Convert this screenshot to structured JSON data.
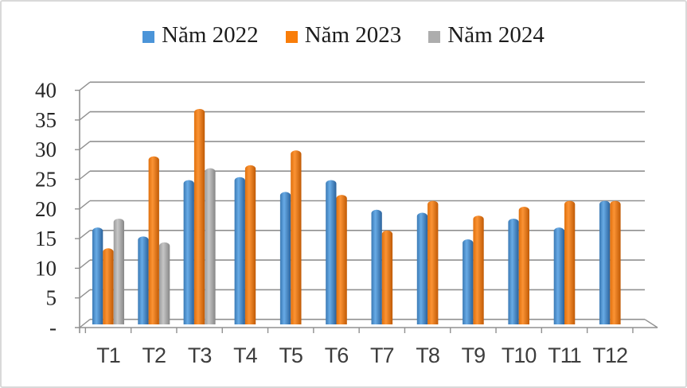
{
  "chart_data": {
    "type": "bar",
    "style": "3d-cylinder-clustered",
    "title": "",
    "xlabel": "",
    "ylabel": "",
    "categories": [
      "T1",
      "T2",
      "T3",
      "T4",
      "T5",
      "T6",
      "T7",
      "T8",
      "T9",
      "T10",
      "T11",
      "T12"
    ],
    "series": [
      {
        "name": "Năm 2022",
        "color": "#4B94D8",
        "gradient": [
          "#3a79b4",
          "#68abe6",
          "#2b629b"
        ],
        "values": [
          16,
          14.5,
          24,
          24.5,
          22,
          24,
          19,
          18.5,
          14,
          17.5,
          16,
          20.5
        ]
      },
      {
        "name": "Năm 2023",
        "color": "#F97D09",
        "gradient": [
          "#e0700d",
          "#fb9334",
          "#c05a05"
        ],
        "values": [
          12.5,
          28,
          36,
          26.5,
          29,
          21.5,
          15.5,
          20.5,
          18,
          19.5,
          20.5,
          20.5
        ]
      },
      {
        "name": "Năm 2024",
        "color": "#ADADAD",
        "gradient": [
          "#9b9b9b",
          "#c6c6c6",
          "#868686"
        ],
        "values": [
          17.5,
          13.5,
          26,
          null,
          null,
          null,
          null,
          null,
          null,
          null,
          null,
          null
        ]
      }
    ],
    "ylim": [
      0,
      40
    ],
    "ytick_step": 5,
    "y_tick_labels": [
      "-",
      "5",
      "10",
      "15",
      "20",
      "25",
      "30",
      "35",
      "40"
    ],
    "grid": true,
    "legend_position": "top",
    "axis_color": "#909090",
    "tick_label_color": "#262626",
    "category_label_color": "#3d3d3d"
  }
}
